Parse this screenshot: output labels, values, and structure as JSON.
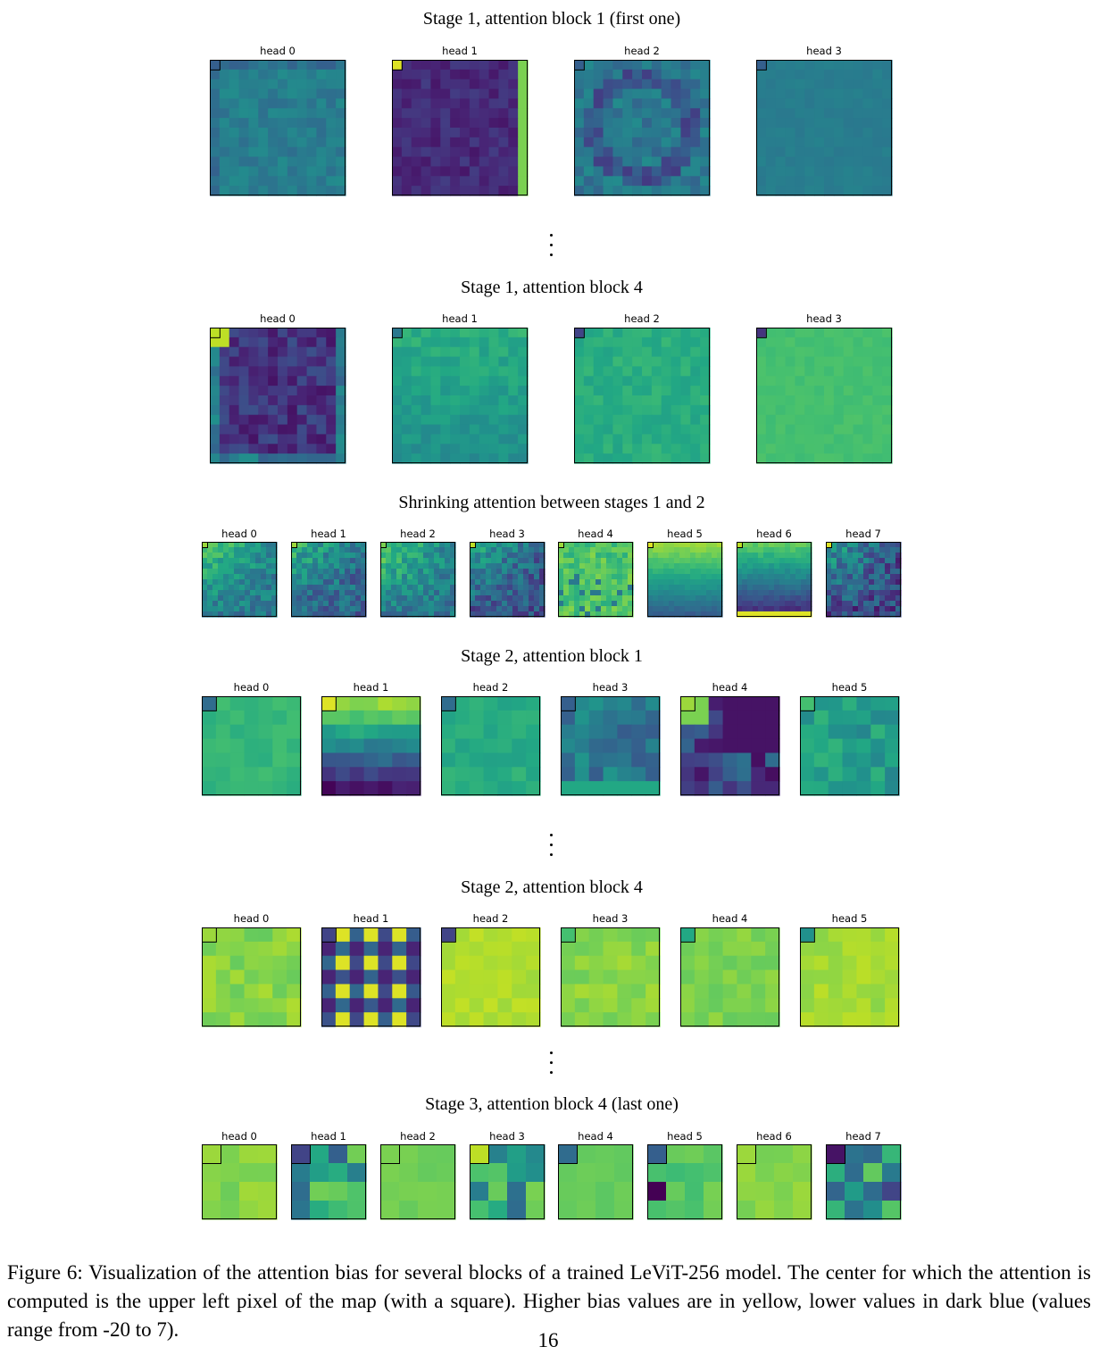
{
  "figure": {
    "rows": [
      {
        "title": "Stage 1, attention block 1 (first one)",
        "heads": [
          "head 0",
          "head 1",
          "head 2",
          "head 3"
        ]
      },
      {
        "title": "Stage 1, attention block 4",
        "heads": [
          "head 0",
          "head 1",
          "head 2",
          "head 3"
        ]
      },
      {
        "title": "Shrinking attention between stages 1 and 2",
        "heads": [
          "head 0",
          "head 1",
          "head 2",
          "head 3",
          "head 4",
          "head 5",
          "head 6",
          "head 7"
        ]
      },
      {
        "title": "Stage 2, attention block 1",
        "heads": [
          "head 0",
          "head 1",
          "head 2",
          "head 3",
          "head 4",
          "head 5"
        ]
      },
      {
        "title": "Stage 2, attention block 4",
        "heads": [
          "head 0",
          "head 1",
          "head 2",
          "head 3",
          "head 4",
          "head 5"
        ]
      },
      {
        "title": "Stage 3, attention block 4 (last one)",
        "heads": [
          "head 0",
          "head 1",
          "head 2",
          "head 3",
          "head 4",
          "head 5",
          "head 6",
          "head 7"
        ]
      }
    ],
    "colormap": "viridis",
    "value_range": [
      -20,
      7
    ]
  },
  "caption": "Figure 6:  Visualization of the attention bias for several blocks of a trained LeViT-256 model. The center for which the attention is computed is the upper left pixel of the map (with a square). Higher bias values are in yellow, lower values in dark blue (values range from -20 to 7).",
  "page_number": "16"
}
